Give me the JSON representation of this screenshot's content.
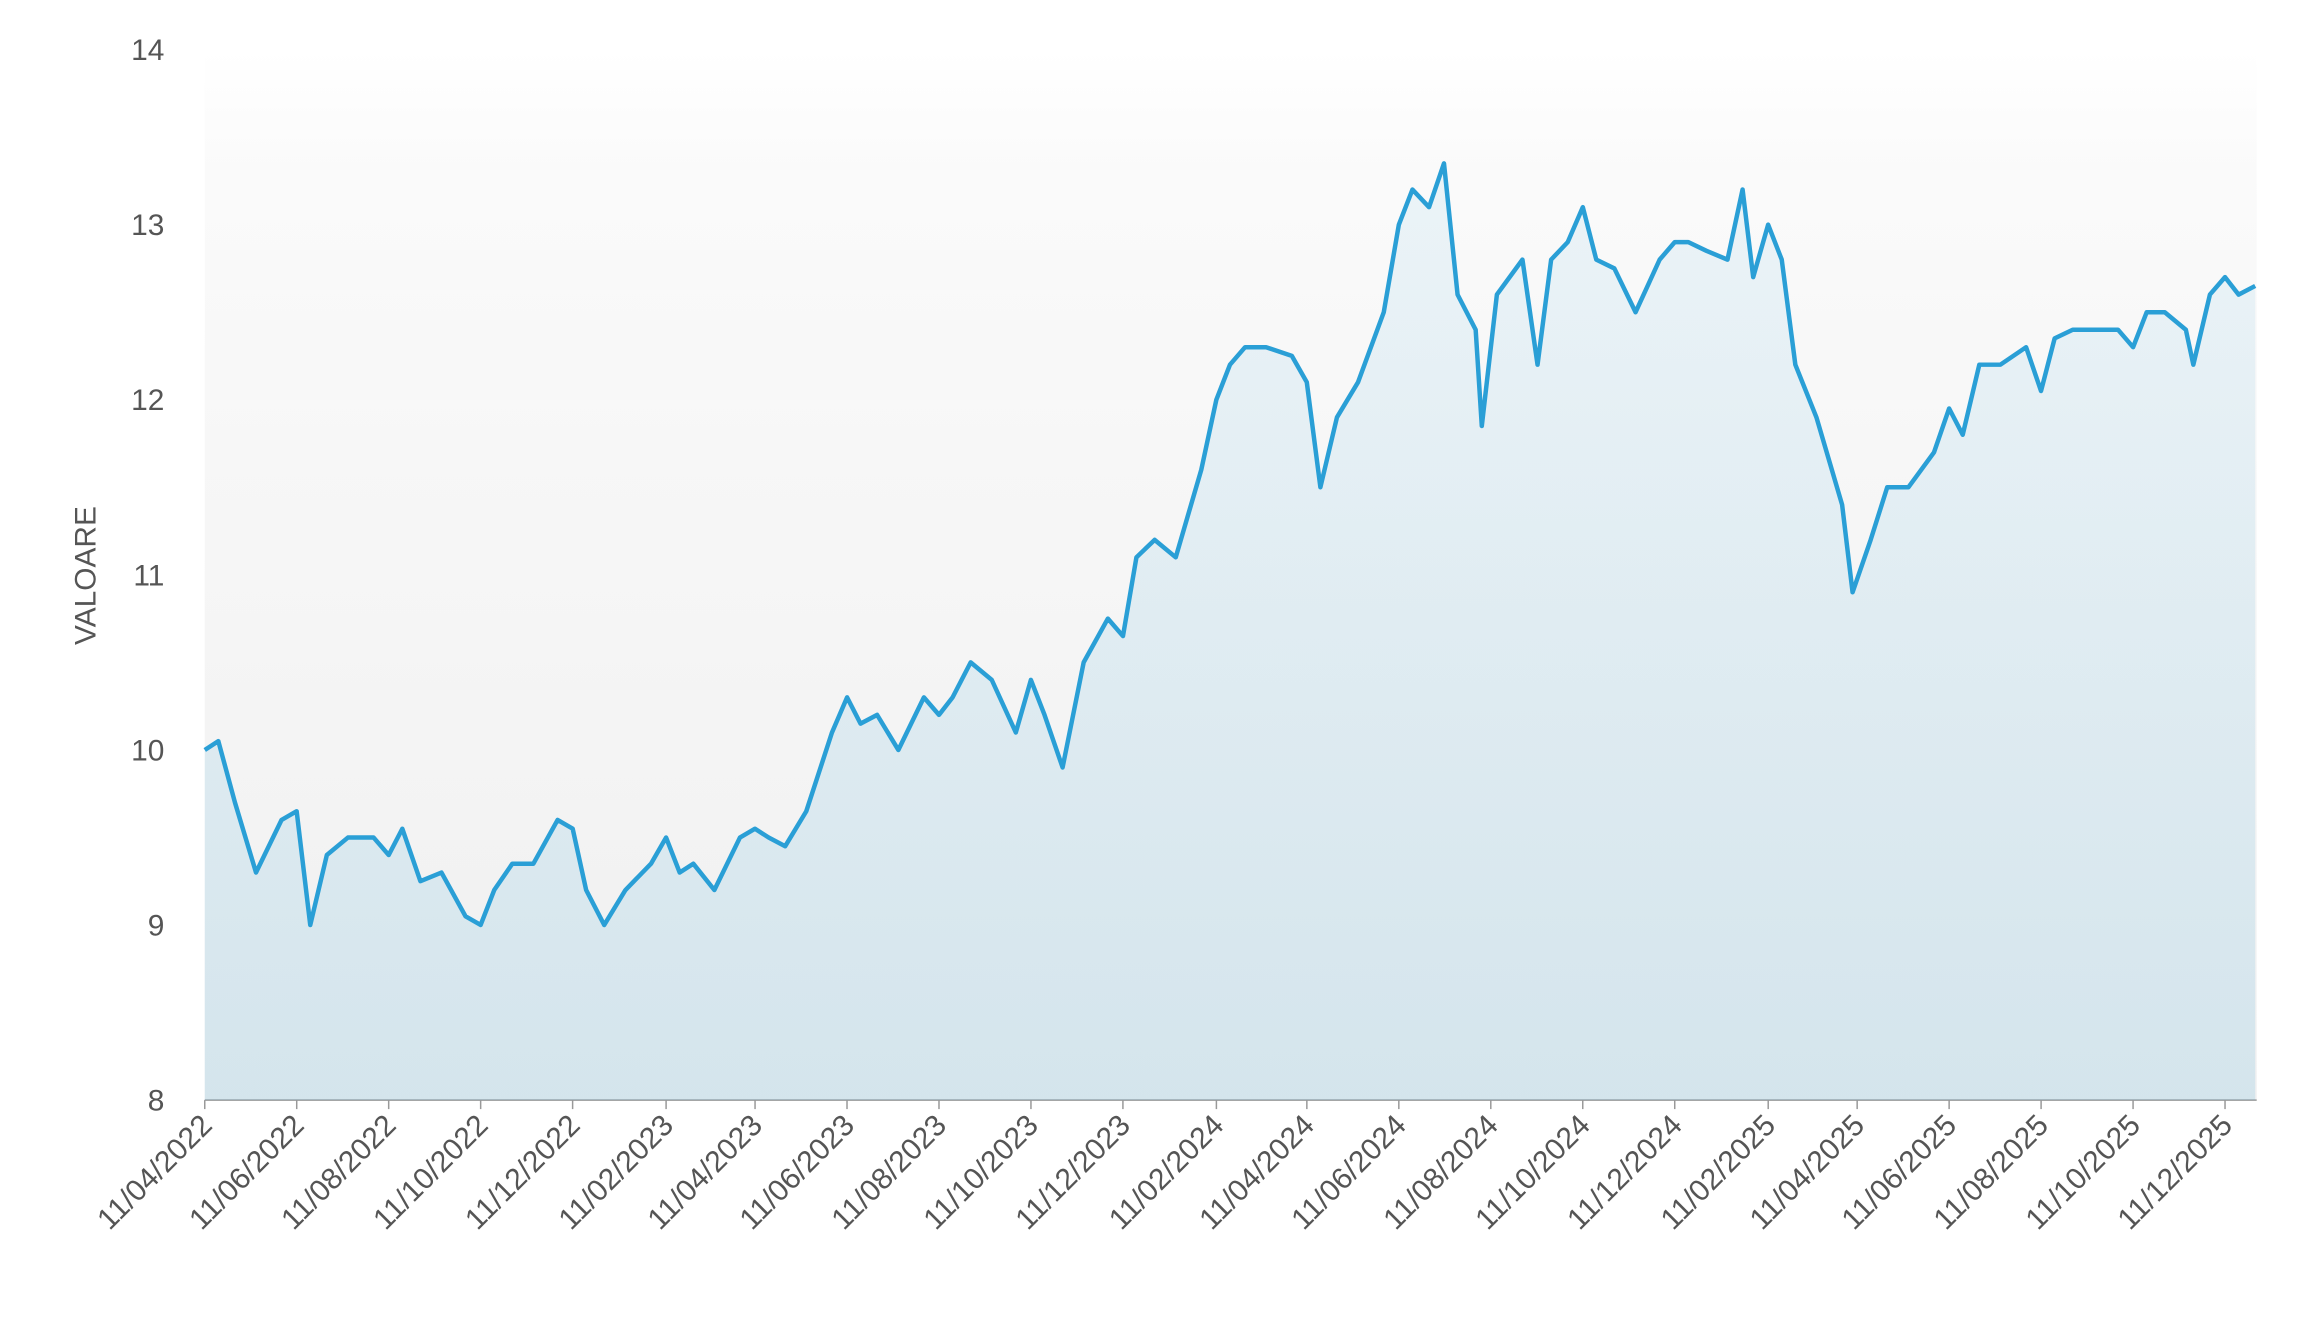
{
  "chart_data": {
    "type": "line",
    "y_label": "VALOARE",
    "x": [
      "2022-04-11",
      "2022-04-20",
      "2022-05-01",
      "2022-05-15",
      "2022-06-01",
      "2022-06-11",
      "2022-06-20",
      "2022-07-01",
      "2022-07-15",
      "2022-08-01",
      "2022-08-11",
      "2022-08-20",
      "2022-09-01",
      "2022-09-15",
      "2022-10-01",
      "2022-10-11",
      "2022-10-20",
      "2022-11-01",
      "2022-11-15",
      "2022-12-01",
      "2022-12-11",
      "2022-12-20",
      "2023-01-01",
      "2023-01-15",
      "2023-02-01",
      "2023-02-11",
      "2023-02-20",
      "2023-03-01",
      "2023-03-15",
      "2023-04-01",
      "2023-04-11",
      "2023-04-20",
      "2023-05-01",
      "2023-05-15",
      "2023-06-01",
      "2023-06-11",
      "2023-06-20",
      "2023-07-01",
      "2023-07-15",
      "2023-08-01",
      "2023-08-11",
      "2023-08-20",
      "2023-09-01",
      "2023-09-15",
      "2023-10-01",
      "2023-10-11",
      "2023-10-20",
      "2023-11-01",
      "2023-11-15",
      "2023-12-01",
      "2023-12-11",
      "2023-12-20",
      "2024-01-01",
      "2024-01-15",
      "2024-02-01",
      "2024-02-11",
      "2024-02-20",
      "2024-03-01",
      "2024-03-15",
      "2024-04-01",
      "2024-04-11",
      "2024-04-20",
      "2024-05-01",
      "2024-05-15",
      "2024-06-01",
      "2024-06-11",
      "2024-06-20",
      "2024-07-01",
      "2024-07-11",
      "2024-07-20",
      "2024-08-01",
      "2024-08-05",
      "2024-08-15",
      "2024-09-01",
      "2024-09-11",
      "2024-09-20",
      "2024-10-01",
      "2024-10-11",
      "2024-10-20",
      "2024-11-01",
      "2024-11-15",
      "2024-12-01",
      "2024-12-11",
      "2024-12-20",
      "2025-01-01",
      "2025-01-15",
      "2025-01-25",
      "2025-02-01",
      "2025-02-11",
      "2025-02-20",
      "2025-03-01",
      "2025-03-15",
      "2025-04-01",
      "2025-04-08",
      "2025-04-20",
      "2025-05-01",
      "2025-05-15",
      "2025-06-01",
      "2025-06-11",
      "2025-06-20",
      "2025-07-01",
      "2025-07-15",
      "2025-08-01",
      "2025-08-11",
      "2025-08-20",
      "2025-09-01",
      "2025-09-15",
      "2025-10-01",
      "2025-10-11",
      "2025-10-20",
      "2025-11-01",
      "2025-11-15",
      "2025-11-20",
      "2025-12-01",
      "2025-12-11",
      "2025-12-20",
      "2025-12-31"
    ],
    "series": [
      {
        "name": "VALOARE",
        "color": "#2a9fd6",
        "values": [
          10.0,
          10.05,
          9.7,
          9.3,
          9.6,
          9.65,
          9.0,
          9.4,
          9.5,
          9.5,
          9.4,
          9.55,
          9.25,
          9.3,
          9.05,
          9.0,
          9.2,
          9.35,
          9.35,
          9.6,
          9.55,
          9.2,
          9.0,
          9.2,
          9.35,
          9.5,
          9.3,
          9.35,
          9.2,
          9.5,
          9.55,
          9.5,
          9.45,
          9.65,
          10.1,
          10.3,
          10.15,
          10.2,
          10.0,
          10.3,
          10.2,
          10.3,
          10.5,
          10.4,
          10.1,
          10.4,
          10.2,
          9.9,
          10.5,
          10.75,
          10.65,
          11.1,
          11.2,
          11.1,
          11.6,
          12.0,
          12.2,
          12.3,
          12.3,
          12.25,
          12.1,
          11.5,
          11.9,
          12.1,
          12.5,
          13.0,
          13.2,
          13.1,
          13.35,
          12.6,
          12.4,
          11.85,
          12.6,
          12.8,
          12.2,
          12.8,
          12.9,
          13.1,
          12.8,
          12.75,
          12.5,
          12.8,
          12.9,
          12.9,
          12.85,
          12.8,
          13.2,
          12.7,
          13.0,
          12.8,
          12.2,
          11.9,
          11.4,
          10.9,
          11.2,
          11.5,
          11.5,
          11.7,
          11.95,
          11.8,
          12.2,
          12.2,
          12.3,
          12.05,
          12.35,
          12.4,
          12.4,
          12.4,
          12.3,
          12.5,
          12.5,
          12.4,
          12.2,
          12.6,
          12.7,
          12.6,
          12.65
        ]
      }
    ],
    "xlim": [
      "2022-04-11",
      "2026-01-01"
    ],
    "xticks": [
      {
        "value": "2022-04-11",
        "label": "11/04/2022"
      },
      {
        "value": "2022-06-11",
        "label": "11/06/2022"
      },
      {
        "value": "2022-08-11",
        "label": "11/08/2022"
      },
      {
        "value": "2022-10-11",
        "label": "11/10/2022"
      },
      {
        "value": "2022-12-11",
        "label": "11/12/2022"
      },
      {
        "value": "2023-02-11",
        "label": "11/02/2023"
      },
      {
        "value": "2023-04-11",
        "label": "11/04/2023"
      },
      {
        "value": "2023-06-11",
        "label": "11/06/2023"
      },
      {
        "value": "2023-08-11",
        "label": "11/08/2023"
      },
      {
        "value": "2023-10-11",
        "label": "11/10/2023"
      },
      {
        "value": "2023-12-11",
        "label": "11/12/2023"
      },
      {
        "value": "2024-02-11",
        "label": "11/02/2024"
      },
      {
        "value": "2024-04-11",
        "label": "11/04/2024"
      },
      {
        "value": "2024-06-11",
        "label": "11/06/2024"
      },
      {
        "value": "2024-08-11",
        "label": "11/08/2024"
      },
      {
        "value": "2024-10-11",
        "label": "11/10/2024"
      },
      {
        "value": "2024-12-11",
        "label": "11/12/2024"
      },
      {
        "value": "2025-02-11",
        "label": "11/02/2025"
      },
      {
        "value": "2025-04-11",
        "label": "11/04/2025"
      },
      {
        "value": "2025-06-11",
        "label": "11/06/2025"
      },
      {
        "value": "2025-08-11",
        "label": "11/08/2025"
      },
      {
        "value": "2025-10-11",
        "label": "11/10/2025"
      },
      {
        "value": "2025-12-11",
        "label": "11/12/2025"
      }
    ],
    "ylim": [
      8,
      14
    ],
    "yticks": [
      8,
      9,
      10,
      11,
      12,
      13,
      14
    ]
  }
}
